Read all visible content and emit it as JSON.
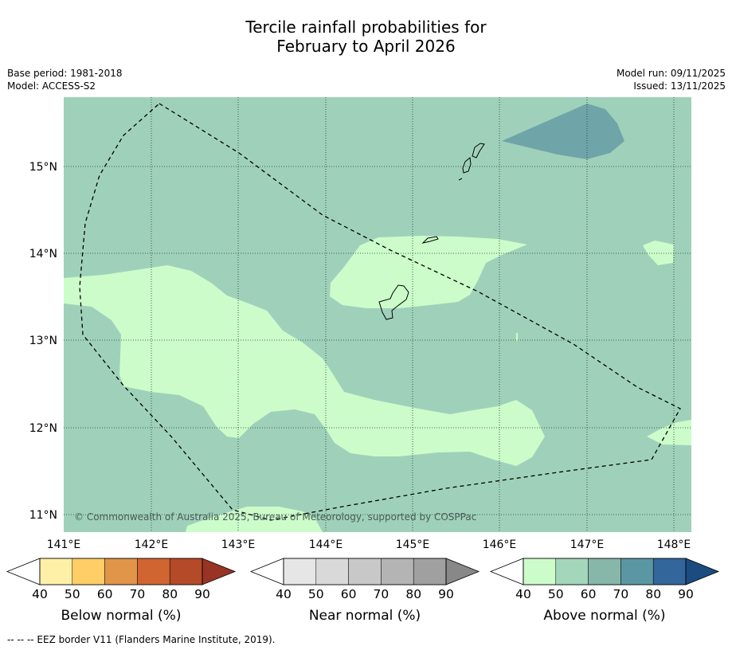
{
  "title": {
    "line1": "Tercile rainfall probabilities for",
    "line2": "February to April 2026"
  },
  "meta_left": {
    "base_period": "Base period: 1981-2018",
    "model": "Model: ACCESS-S2"
  },
  "meta_right": {
    "model_run": "Model run: 09/11/2025",
    "issued": "Issued: 13/11/2025"
  },
  "copyright": "© Commonwealth of Australia 2025, Bureau of Meteorology, supported by COSPPac",
  "footer": "--  --  -- EEZ border V11 (Flanders Marine Institute, 2019).",
  "axes": {
    "lon_ticks": [
      "141°E",
      "142°E",
      "143°E",
      "144°E",
      "145°E",
      "146°E",
      "147°E",
      "148°E"
    ],
    "lat_ticks": [
      "15°N",
      "14°N",
      "13°N",
      "12°N",
      "11°N"
    ]
  },
  "colors": {
    "above_50": "#9fd1ba",
    "above_40": "#ccfcca",
    "above_70": "#6fa5a8",
    "gridline": "#1f3a2a",
    "eez_line": "#000000"
  },
  "legend": [
    {
      "title": "Below normal (%)",
      "labels": [
        "40",
        "50",
        "60",
        "70",
        "80",
        "90"
      ],
      "colors": [
        "#ffffff",
        "#fff0a8",
        "#ffce66",
        "#e09549",
        "#d06532",
        "#b44a28",
        "#973425"
      ]
    },
    {
      "title": "Near normal (%)",
      "labels": [
        "40",
        "50",
        "60",
        "70",
        "80",
        "90"
      ],
      "colors": [
        "#ffffff",
        "#e6e6e6",
        "#d9d9d9",
        "#c8c8c8",
        "#b4b4b4",
        "#a0a0a0",
        "#888888"
      ]
    },
    {
      "title": "Above normal (%)",
      "labels": [
        "40",
        "50",
        "60",
        "70",
        "80",
        "90"
      ],
      "colors": [
        "#ffffff",
        "#ccfcca",
        "#a3d6bb",
        "#86b7a9",
        "#5b97a2",
        "#33669a",
        "#1c4b82"
      ]
    }
  ]
}
